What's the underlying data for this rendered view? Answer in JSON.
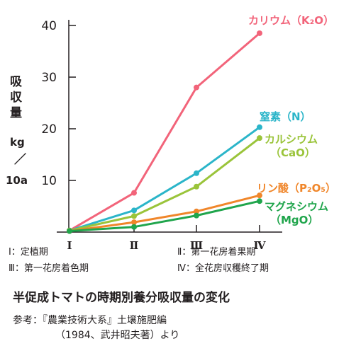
{
  "chart_data": {
    "type": "line",
    "categories": [
      "Ⅰ",
      "Ⅱ",
      "Ⅲ",
      "Ⅳ"
    ],
    "ylim": [
      0,
      40
    ],
    "yticks": [
      10,
      20,
      30,
      40
    ],
    "ylabel_lines": [
      "吸",
      "収",
      "量",
      "kg",
      "／",
      "10a"
    ],
    "grid": false,
    "series": [
      {
        "name": "カリウム（K2O）",
        "color": "#f2647a",
        "values": [
          0.3,
          7.6,
          28.0,
          38.5
        ]
      },
      {
        "name": "窒素（N）",
        "color": "#2bb5c9",
        "values": [
          0.3,
          4.2,
          11.4,
          20.3
        ]
      },
      {
        "name": "カルシウム（CaO）",
        "color": "#9ac43a",
        "values": [
          0.3,
          3.1,
          8.8,
          18.2
        ]
      },
      {
        "name": "リン酸（P2O5）",
        "color": "#f0862a",
        "values": [
          0.2,
          1.9,
          4.0,
          7.1
        ]
      },
      {
        "name": "マグネシウム（MgO）",
        "color": "#20a54c",
        "values": [
          0.2,
          1.0,
          3.2,
          6.0
        ]
      }
    ],
    "series_labels": [
      {
        "lines": [
          "カリウム（K₂O）"
        ]
      },
      {
        "lines": [
          "窒素（N）"
        ]
      },
      {
        "lines": [
          "カルシウム",
          "（CaO）"
        ]
      },
      {
        "lines": [
          "リン酸（P₂O₅）"
        ]
      },
      {
        "lines": [
          "マグネシウム",
          "（MgO）"
        ]
      }
    ]
  },
  "period_legend": [
    "Ⅰ：定植期",
    "Ⅱ：第一花房着果期",
    "Ⅲ：第一花房着色期",
    "Ⅳ：全花房収穫終了期"
  ],
  "title": "半促成トマトの時期別養分吸収量の変化",
  "source": [
    "参考：『農業技術大系』土壌施肥編",
    "（1984、武井昭夫著）より"
  ]
}
